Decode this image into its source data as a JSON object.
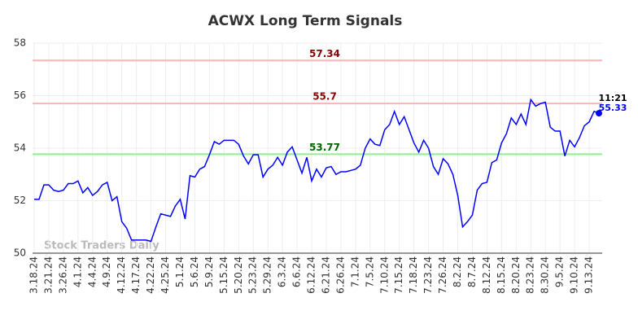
{
  "chart_data": {
    "type": "line",
    "title": "ACWX Long Term Signals",
    "watermark": "Stock Traders Daily",
    "categories": [
      "3.18.24",
      null,
      null,
      "3.21.24",
      null,
      null,
      "3.26.24",
      null,
      null,
      "4.1.24",
      null,
      null,
      "4.4.24",
      null,
      null,
      "4.9.24",
      null,
      null,
      "4.12.24",
      null,
      null,
      "4.17.24",
      null,
      null,
      "4.22.24",
      null,
      null,
      "4.25.24",
      null,
      null,
      "5.1.24",
      null,
      null,
      "5.6.24",
      null,
      null,
      "5.9.24",
      null,
      null,
      "5.15.24",
      null,
      null,
      "5.20.24",
      null,
      null,
      "5.23.24",
      null,
      null,
      "5.29.24",
      null,
      null,
      "6.3.24",
      null,
      null,
      "6.6.24",
      null,
      null,
      "6.12.24",
      null,
      null,
      "6.21.24",
      null,
      null,
      "6.26.24",
      null,
      null,
      "7.1.24",
      null,
      null,
      "7.5.24",
      null,
      null,
      "7.10.24",
      null,
      null,
      "7.15.24",
      null,
      null,
      "7.18.24",
      null,
      null,
      "7.23.24",
      null,
      null,
      "7.26.24",
      null,
      null,
      "8.2.24",
      null,
      null,
      "8.7.24",
      null,
      null,
      "8.12.24",
      null,
      null,
      "8.15.24",
      null,
      null,
      "8.20.24",
      null,
      null,
      "8.23.24",
      null,
      null,
      "8.30.24",
      null,
      null,
      "9.5.24",
      null,
      null,
      "9.10.24",
      null,
      null,
      "9.13.24",
      null,
      null
    ],
    "series": [
      {
        "name": "ACWX",
        "color": "#0000ff",
        "values": [
          52.05,
          52.05,
          52.6,
          52.6,
          52.4,
          52.35,
          52.4,
          52.65,
          52.65,
          52.75,
          52.3,
          52.5,
          52.2,
          52.35,
          52.6,
          52.7,
          52.0,
          52.15,
          51.2,
          50.95,
          50.5,
          50.5,
          50.5,
          50.5,
          50.45,
          51.0,
          51.5,
          51.45,
          51.4,
          51.8,
          52.05,
          51.3,
          52.95,
          52.9,
          53.2,
          53.3,
          53.75,
          54.25,
          54.15,
          54.3,
          54.3,
          54.3,
          54.15,
          53.7,
          53.4,
          53.75,
          53.75,
          52.9,
          53.2,
          53.35,
          53.65,
          53.35,
          53.85,
          54.05,
          53.55,
          53.05,
          53.65,
          52.75,
          53.2,
          52.9,
          53.25,
          53.3,
          53.0,
          53.1,
          53.1,
          53.15,
          53.2,
          53.35,
          54.0,
          54.35,
          54.15,
          54.1,
          54.7,
          54.9,
          55.4,
          54.9,
          55.2,
          54.7,
          54.2,
          53.85,
          54.3,
          54.0,
          53.3,
          53.0,
          53.6,
          53.4,
          53.0,
          52.2,
          51.0,
          51.2,
          51.45,
          52.4,
          52.65,
          52.7,
          53.45,
          53.55,
          54.2,
          54.55,
          55.15,
          54.9,
          55.3,
          54.9,
          55.85,
          55.6,
          55.7,
          55.75,
          54.8,
          54.65,
          54.65,
          53.7,
          54.3,
          54.05,
          54.4,
          54.85,
          55.0,
          55.4,
          55.33
        ]
      }
    ],
    "last_label": {
      "time": "11:21",
      "value": 55.33
    },
    "hlines": [
      {
        "value": 57.34,
        "color": "#ffb3b3",
        "label_color": "#8b0000"
      },
      {
        "value": 55.7,
        "color": "#ffb3b3",
        "label_color": "#8b0000"
      },
      {
        "value": 53.77,
        "color": "#90ee90",
        "label_color": "#006400"
      }
    ],
    "ylim": [
      50,
      58
    ],
    "yticks": [
      50,
      52,
      54,
      56,
      58
    ],
    "grid": true
  }
}
